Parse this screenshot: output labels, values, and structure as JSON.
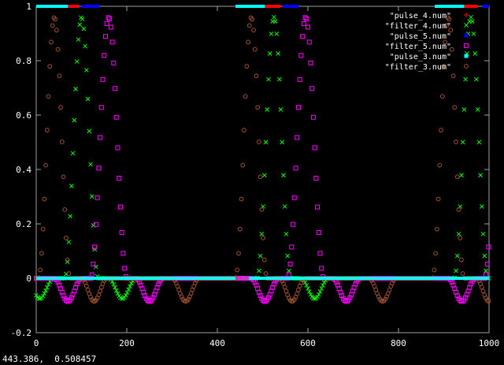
{
  "window": {
    "status_readout": "443.386,  0.508457"
  },
  "colors": {
    "background": "#000000",
    "frame": "#a0a0a0",
    "tick_text": "#ffffff"
  },
  "chart_data": {
    "type": "scatter",
    "xlim": [
      0,
      1000
    ],
    "ylim": [
      -0.2,
      1
    ],
    "x_ticks": [
      0,
      200,
      400,
      600,
      800,
      1000
    ],
    "y_ticks": [
      -0.2,
      0,
      0.2,
      0.4,
      0.6,
      0.8,
      1
    ],
    "x_tick_labels": [
      "0",
      "200",
      "400",
      "600",
      "800",
      "1000"
    ],
    "y_tick_labels": [
      "-0.2",
      "0",
      "0.2",
      "0.4",
      "0.6",
      "0.8",
      "1"
    ],
    "grid": false,
    "legend_position": "top-right",
    "series": [
      {
        "name": "\"pulse_4.num\"",
        "color": "#ff0000",
        "marker": "plus",
        "segments": [
          {
            "x0": 20,
            "x1": 45,
            "level": 0.0
          }
        ],
        "top_segments": [
          {
            "x0": 70,
            "x1": 95
          },
          {
            "x0": 505,
            "x1": 540
          },
          {
            "x0": 945,
            "x1": 975
          }
        ]
      },
      {
        "name": "\"filter_4.num\"",
        "color": "#00ff00",
        "marker": "cross",
        "peaks": [
          {
            "x": 100,
            "y": 0.96,
            "hw": 37
          },
          {
            "x": 525,
            "y": 0.96,
            "hw": 37
          },
          {
            "x": 960,
            "y": 0.96,
            "hw": 37
          }
        ],
        "troughs": [
          {
            "x": 8,
            "y": -0.075,
            "hw": 30
          },
          {
            "x": 190,
            "y": -0.075,
            "hw": 30
          },
          {
            "x": 615,
            "y": -0.075,
            "hw": 30
          },
          {
            "x": 1045,
            "y": -0.075,
            "hw": 30
          }
        ]
      },
      {
        "name": "\"pulse_5.num\"",
        "color": "#0000ff",
        "marker": "filled-square",
        "segments": [
          {
            "x0": 45,
            "x1": 70,
            "level": 0.0
          },
          {
            "x0": 480,
            "x1": 505,
            "level": 0.0
          },
          {
            "x0": 915,
            "x1": 945,
            "level": 0.0
          }
        ],
        "top_segments": [
          {
            "x0": 100,
            "x1": 140
          },
          {
            "x0": 545,
            "x1": 580
          },
          {
            "x0": 985,
            "x1": 1015
          }
        ]
      },
      {
        "name": "\"filter_5.num\"",
        "color": "#ff00ff",
        "marker": "open-square",
        "peaks": [
          {
            "x": 160,
            "y": 0.96,
            "hw": 40
          },
          {
            "x": 595,
            "y": 0.96,
            "hw": 40
          },
          {
            "x": 1030,
            "y": 0.96,
            "hw": 40
          }
        ],
        "troughs": [
          {
            "x": 70,
            "y": -0.085,
            "hw": 30
          },
          {
            "x": 250,
            "y": -0.085,
            "hw": 30
          },
          {
            "x": 505,
            "y": -0.085,
            "hw": 30
          },
          {
            "x": 685,
            "y": -0.085,
            "hw": 30
          },
          {
            "x": 940,
            "y": -0.085,
            "hw": 30
          }
        ]
      },
      {
        "name": "\"pulse_3.num\"",
        "color": "#00ffff",
        "marker": "filled-square",
        "segments": [
          {
            "x0": 0,
            "x1": 440,
            "level": 0.0
          },
          {
            "x0": 470,
            "x1": 1000,
            "level": 0.0
          }
        ],
        "top_segments": [
          {
            "x0": 0,
            "x1": 70
          },
          {
            "x0": 440,
            "x1": 505
          },
          {
            "x0": 880,
            "x1": 945
          }
        ]
      },
      {
        "name": "\"filter_3.num\"",
        "color": "#a0522d",
        "marker": "circle",
        "peaks": [
          {
            "x": 40,
            "y": 0.96,
            "hw": 35
          },
          {
            "x": 475,
            "y": 0.96,
            "hw": 35
          },
          {
            "x": 910,
            "y": 0.96,
            "hw": 35
          }
        ],
        "troughs": [
          {
            "x": 128,
            "y": -0.085,
            "hw": 28
          },
          {
            "x": 330,
            "y": -0.085,
            "hw": 30
          },
          {
            "x": 565,
            "y": -0.085,
            "hw": 28
          },
          {
            "x": 765,
            "y": -0.085,
            "hw": 30
          },
          {
            "x": 1000,
            "y": -0.085,
            "hw": 28
          }
        ]
      }
    ]
  }
}
